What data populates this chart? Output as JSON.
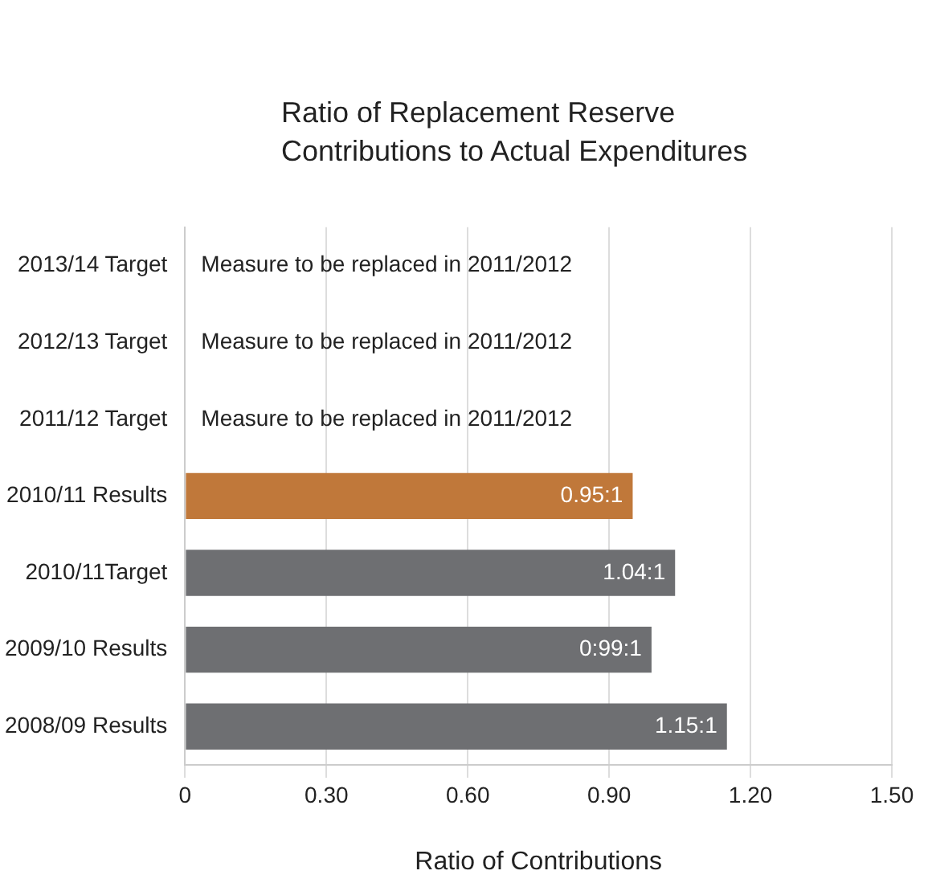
{
  "chart_data": {
    "type": "bar",
    "orientation": "horizontal",
    "title": "Ratio of Replacement Reserve Contributions to Actual Expenditures",
    "xlabel": "Ratio of Contributions",
    "categories": [
      "2013/14 Target",
      "2012/13 Target",
      "2011/12 Target",
      "2010/11 Results",
      "2010/11Target",
      "2009/10 Results",
      "2008/09 Results"
    ],
    "values": [
      null,
      null,
      null,
      0.95,
      1.04,
      0.99,
      1.15
    ],
    "colors": [
      "#6e6f72",
      "#6e6f72",
      "#6e6f72",
      "#c0783a",
      "#6e6f72",
      "#6e6f72",
      "#6e6f72"
    ],
    "value_labels": [
      "Measure to be replaced in 2011/2012",
      "Measure to be replaced in 2011/2012",
      "Measure to be replaced in 2011/2012",
      "0.95:1",
      "1.04:1",
      "0:99:1",
      "1.15:1"
    ],
    "xlim": [
      0,
      1.5
    ],
    "xticks": [
      0,
      {
        "value": 0.3,
        "label": "0.30"
      },
      {
        "value": 0.6,
        "label": "0.60"
      },
      {
        "value": 0.9,
        "label": "0.90"
      },
      {
        "value": 1.2,
        "label": "1.20"
      },
      {
        "value": 1.5,
        "label": "1.50"
      }
    ],
    "grid": "x",
    "legend": false
  }
}
